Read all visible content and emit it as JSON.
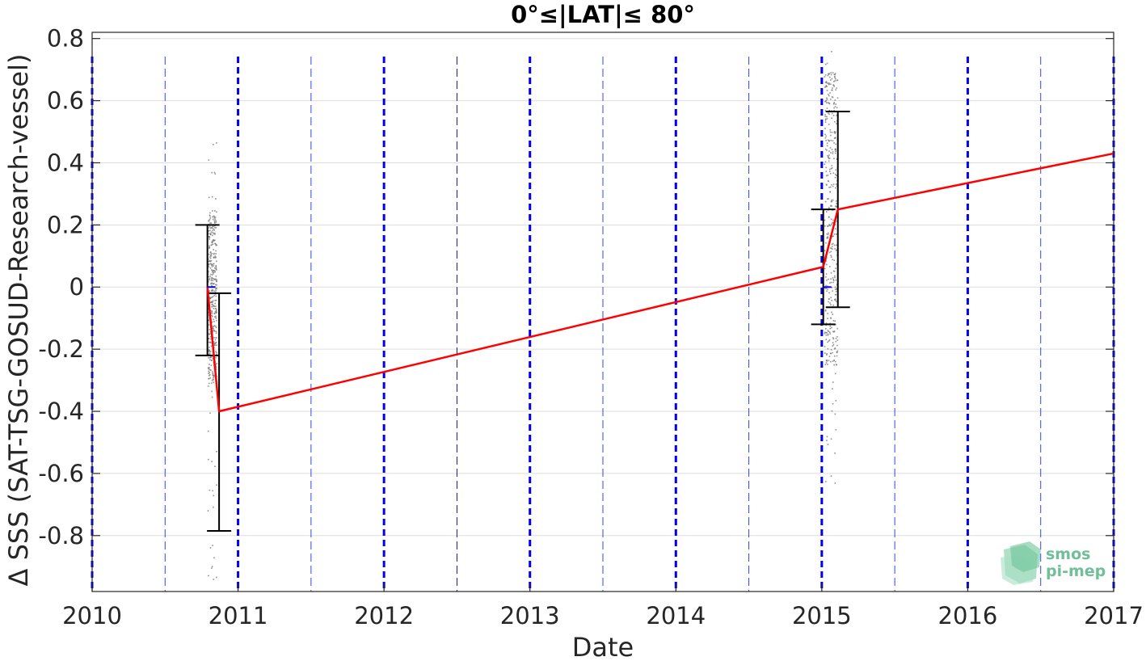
{
  "chart_data": {
    "type": "line",
    "title": "0°≤|LAT|≤ 80°",
    "xlabel": "Date",
    "ylabel": "Δ SSS (SAT-TSG-GOSUD-Research-vessel)",
    "xlim": [
      2010,
      2017
    ],
    "ylim": [
      -0.98,
      0.82
    ],
    "x_ticks": [
      "2010",
      "2011",
      "2012",
      "2013",
      "2014",
      "2015",
      "2016",
      "2017"
    ],
    "y_ticks": [
      "0.8",
      "0.6",
      "0.4",
      "0.2",
      "0",
      "-0.2",
      "-0.4",
      "-0.6",
      "-0.8"
    ],
    "y_tick_values": [
      0.8,
      0.6,
      0.4,
      0.2,
      0,
      -0.2,
      -0.4,
      -0.6,
      -0.8
    ],
    "grid": true,
    "series": [
      {
        "color": "#ff0000",
        "x": [
          2010.79,
          2010.87,
          2015.01,
          2015.11,
          2017.0
        ],
        "y": [
          0.0,
          -0.4,
          0.065,
          0.25,
          0.43
        ]
      }
    ],
    "error_bars": [
      {
        "x": 2010.79,
        "low": -0.22,
        "high": 0.2
      },
      {
        "x": 2010.87,
        "low": -0.785,
        "high": -0.02
      },
      {
        "x": 2015.01,
        "low": -0.12,
        "high": 0.25
      },
      {
        "x": 2015.11,
        "low": -0.065,
        "high": 0.565
      }
    ],
    "scatter_clusters": [
      {
        "x_center": 2010.82,
        "x_spread": 0.03,
        "low": -0.95,
        "high": 0.52,
        "core_low": -0.3,
        "core_high": 0.25
      },
      {
        "x_center": 2015.06,
        "x_spread": 0.045,
        "low": -0.65,
        "high": 0.8,
        "core_low": -0.25,
        "core_high": 0.7
      }
    ],
    "year_lines": [
      2010,
      2011,
      2012,
      2013,
      2014,
      2015,
      2016,
      2017
    ],
    "half_year_lines": [
      2010.5,
      2011.5,
      2012.5,
      2013.5,
      2014.5,
      2015.5,
      2016.5
    ],
    "colors": {
      "trend": "#ff0000",
      "year_line": "#0000ee",
      "half_year_line": "#3344ee",
      "error_bar": "#000000",
      "scatter": "#777777",
      "grid": "#dddddd"
    }
  },
  "logo": {
    "line1": "smos",
    "line2": "pi-mep",
    "icon": "smos-pimep-logo-icon"
  }
}
